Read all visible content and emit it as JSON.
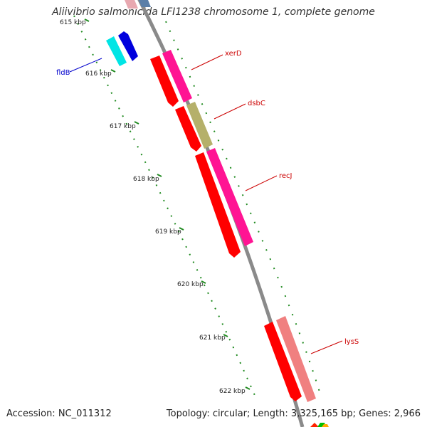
{
  "title": "Aliivibrio salmonicida LFI1238 chromosome 1, complete genome",
  "footer": {
    "accession": "Accession: NC_011312",
    "stats": "Topology: circular; Length: 3,325,165 bp; Genes: 2,966"
  },
  "colors": {
    "background": "#ffffff",
    "backbone": "#8a8a8a",
    "ticks": "#1f8a1f",
    "label_red": "#cc0000",
    "label_blue": "#0000cc"
  },
  "chart_data": {
    "type": "genome-map",
    "visible_range_kbp": [
      615,
      622
    ],
    "tick_labels": [
      "615 kbp",
      "616 kbp",
      "617 kbp",
      "618 kbp",
      "619 kbp",
      "620 kbp",
      "621 kbp",
      "622 kbp"
    ],
    "genes": [
      {
        "name": "xerD",
        "label_color": "#cc0000"
      },
      {
        "name": "dsbC",
        "label_color": "#cc0000"
      },
      {
        "name": "recJ",
        "label_color": "#cc0000"
      },
      {
        "name": "lysS",
        "label_color": "#cc0000"
      },
      {
        "name": "fldB",
        "label_color": "#0000cc"
      }
    ]
  }
}
